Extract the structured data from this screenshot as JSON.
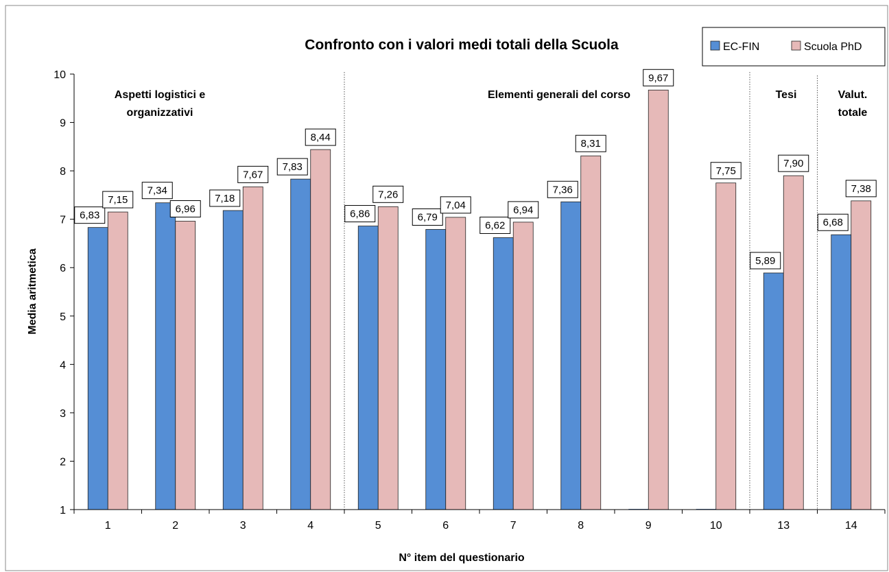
{
  "chart_data": {
    "type": "bar",
    "title": "Confronto con i valori medi totali della Scuola",
    "xlabel": "N° item del questionario",
    "ylabel": "Media aritmetica",
    "ylim": [
      1,
      10
    ],
    "yticks": [
      1,
      2,
      3,
      4,
      5,
      6,
      7,
      8,
      9,
      10
    ],
    "categories": [
      "1",
      "2",
      "3",
      "4",
      "5",
      "6",
      "7",
      "8",
      "9",
      "10",
      "13",
      "14"
    ],
    "series": [
      {
        "name": "EC-FIN",
        "color": "#558ed5",
        "values": [
          6.83,
          7.34,
          7.18,
          7.83,
          6.86,
          6.79,
          6.62,
          7.36,
          null,
          null,
          5.89,
          6.68
        ],
        "labels": [
          "6,83",
          "7,34",
          "7,18",
          "7,83",
          "6,86",
          "6,79",
          "6,62",
          "7,36",
          "",
          "",
          "5,89",
          "6,68"
        ]
      },
      {
        "name": "Scuola PhD",
        "color": "#e6b9b8",
        "values": [
          7.15,
          6.96,
          7.67,
          8.44,
          7.26,
          7.04,
          6.94,
          8.31,
          9.67,
          7.75,
          7.9,
          7.38
        ],
        "labels": [
          "7,15",
          "6,96",
          "7,67",
          "8,44",
          "7,26",
          "7,04",
          "6,94",
          "8,31",
          "9,67",
          "7,75",
          "7,90",
          "7,38"
        ]
      }
    ],
    "sections": [
      {
        "lines": [
          "Aspetti logistici e",
          "organizzativi"
        ]
      },
      {
        "lines": [
          "Elementi generali del corso"
        ]
      },
      {
        "lines": [
          "Tesi"
        ]
      },
      {
        "lines": [
          "Valut.",
          "totale"
        ]
      }
    ],
    "section_dividers_after_category": [
      "4",
      "10",
      "13"
    ],
    "legend_position": "top-right",
    "grid": false
  }
}
